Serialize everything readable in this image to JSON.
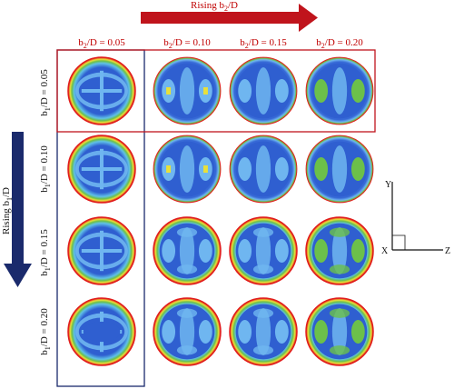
{
  "top_arrow": {
    "label_base": "Rising b",
    "label_sub": "2",
    "label_tail": "/D",
    "color": "#c0141c"
  },
  "left_arrow": {
    "label_base": "Rising b",
    "label_sub": "1",
    "label_tail": "/D",
    "color": "#1a2a6c"
  },
  "columns": [
    {
      "base": "b",
      "sub": "2",
      "tail": "/D = 0.05"
    },
    {
      "base": "b",
      "sub": "2",
      "tail": "/D = 0.10"
    },
    {
      "base": "b",
      "sub": "2",
      "tail": "/D = 0.15"
    },
    {
      "base": "b",
      "sub": "2",
      "tail": "/D = 0.20"
    }
  ],
  "rows": [
    {
      "base": "b",
      "sub": "1",
      "tail": "/D = 0.05"
    },
    {
      "base": "b",
      "sub": "1",
      "tail": "/D = 0.10"
    },
    {
      "base": "b",
      "sub": "1",
      "tail": "/D = 0.15"
    },
    {
      "base": "b",
      "sub": "1",
      "tail": "/D = 0.20"
    }
  ],
  "axes": {
    "y": "Y",
    "x": "X",
    "z": "Z"
  },
  "highlight": {
    "row_box_color": "#c0141c",
    "column_box_color": "#1a2a6c"
  },
  "colormap": {
    "low": "#2f5fd0",
    "mid": "#6fb6f0",
    "green": "#6cc04a",
    "yellow": "#e8e03a",
    "high": "#e11b1b"
  }
}
